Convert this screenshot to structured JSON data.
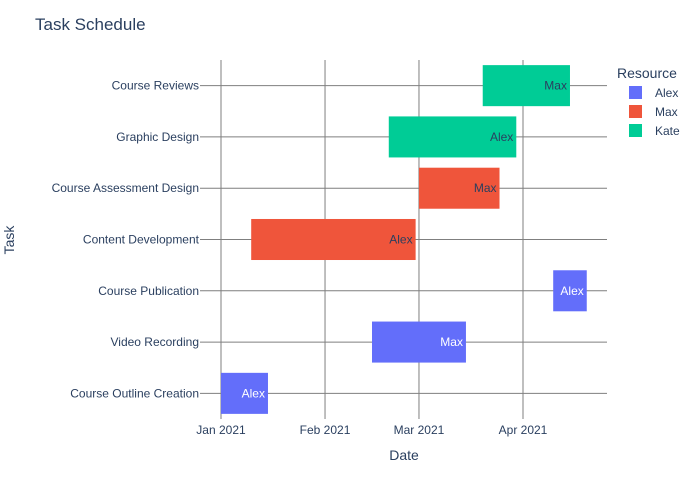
{
  "chart_data": {
    "type": "gantt",
    "title": "Task Schedule",
    "xlabel": "Date",
    "ylabel": "Task",
    "x_ticks": [
      "Jan 2021",
      "Feb 2021",
      "Mar 2021",
      "Apr 2021"
    ],
    "x_tick_dates": [
      "2021-01-01",
      "2021-02-01",
      "2021-03-01",
      "2021-04-01"
    ],
    "xlim": [
      "2021-01-01",
      "2021-04-26"
    ],
    "categories": [
      "Course Reviews",
      "Graphic Design",
      "Course Assessment Design",
      "Content Development",
      "Course Publication",
      "Video Recording",
      "Course Outline Creation"
    ],
    "legend": {
      "title": "Resource",
      "position": "right",
      "items": [
        {
          "name": "Alex",
          "color": "#636efa"
        },
        {
          "name": "Max",
          "color": "#ef553b"
        },
        {
          "name": "Kate",
          "color": "#00cc96"
        }
      ]
    },
    "tasks": [
      {
        "task": "Course Outline Creation",
        "start": "2021-01-01",
        "end": "2021-01-15",
        "resource": "Alex",
        "label": "Alex"
      },
      {
        "task": "Video Recording",
        "start": "2021-02-15",
        "end": "2021-03-15",
        "resource": "Alex",
        "label": "Max"
      },
      {
        "task": "Course Publication",
        "start": "2021-04-10",
        "end": "2021-04-20",
        "resource": "Alex",
        "label": "Alex"
      },
      {
        "task": "Content Development",
        "start": "2021-01-10",
        "end": "2021-02-28",
        "resource": "Max",
        "label": "Alex"
      },
      {
        "task": "Course Assessment Design",
        "start": "2021-03-01",
        "end": "2021-03-25",
        "resource": "Max",
        "label": "Max"
      },
      {
        "task": "Graphic Design",
        "start": "2021-02-20",
        "end": "2021-03-30",
        "resource": "Kate",
        "label": "Alex"
      },
      {
        "task": "Course Reviews",
        "start": "2021-03-20",
        "end": "2021-04-15",
        "resource": "Kate",
        "label": "Max"
      }
    ],
    "grid": true
  }
}
